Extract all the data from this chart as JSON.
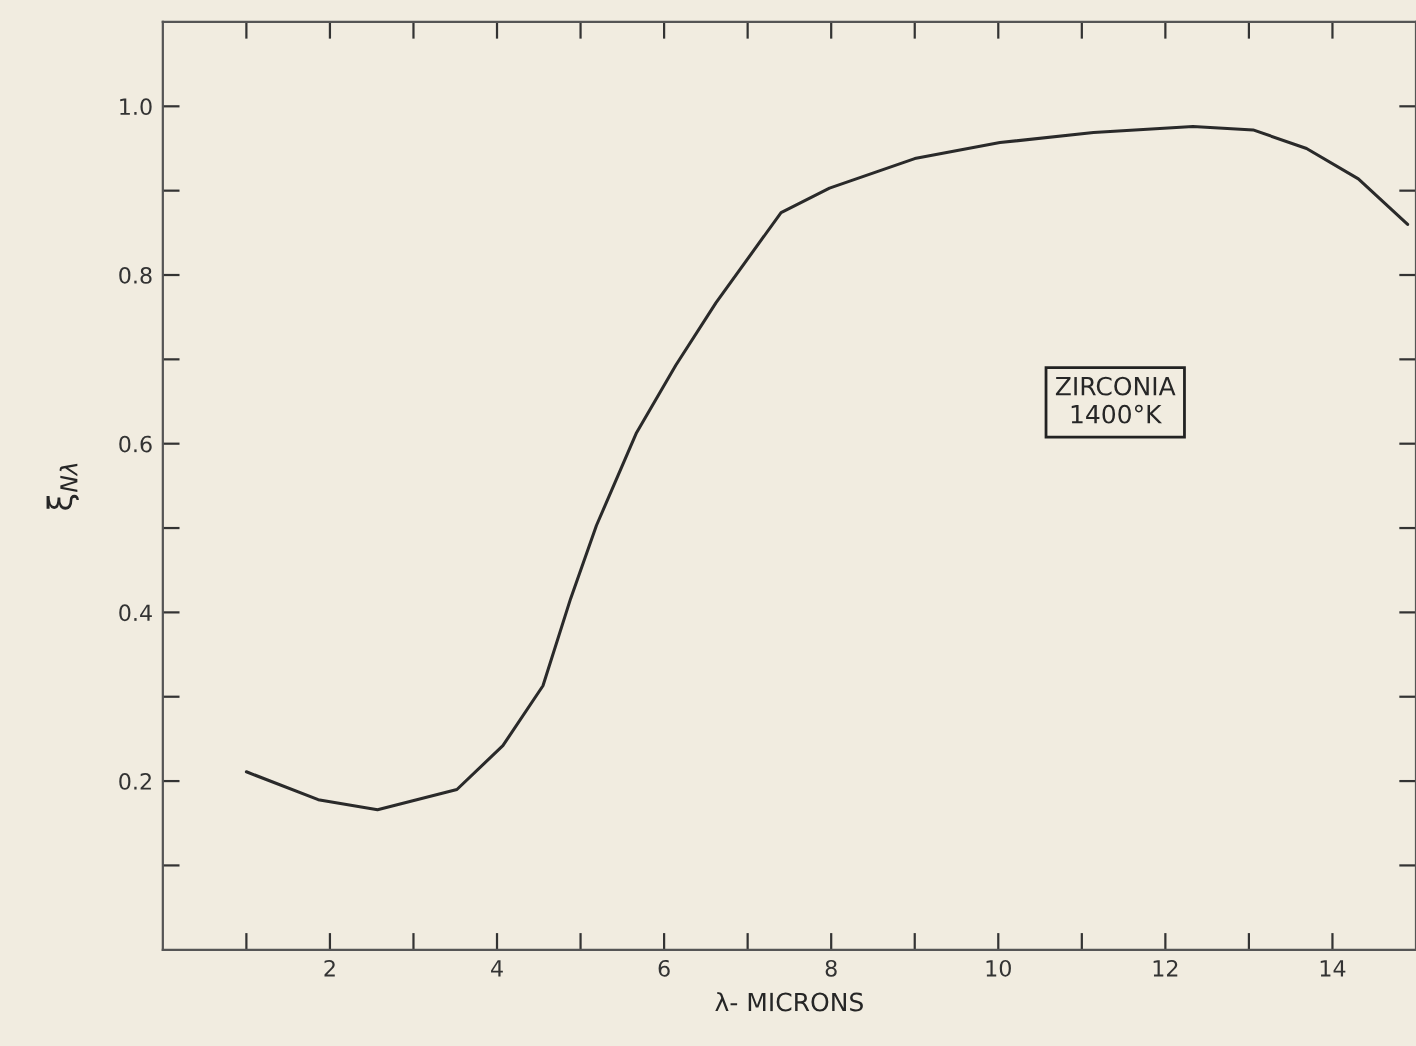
{
  "chart_data": {
    "type": "line",
    "xlabel": "λ- MICRONS",
    "ylabel": "ξ$_{Nλ}$",
    "annotations": [
      "ZIRCONIA\n1400°K"
    ],
    "xlim": [
      0,
      15
    ],
    "ylim": [
      0,
      1.1
    ],
    "xticks": [
      {
        "value": 1,
        "label": null
      },
      2,
      {
        "value": 3,
        "label": null
      },
      4,
      {
        "value": 5,
        "label": null
      },
      6,
      {
        "value": 7,
        "label": null
      },
      8,
      {
        "value": 9,
        "label": null
      },
      10,
      {
        "value": 11,
        "label": null
      },
      12,
      {
        "value": 13,
        "label": null
      },
      14
    ],
    "yticks": [
      {
        "value": 0.1,
        "label": null
      },
      0.2,
      {
        "value": 0.3,
        "label": null
      },
      0.4,
      {
        "value": 0.5,
        "label": null
      },
      0.6,
      {
        "value": 0.7,
        "label": null
      },
      0.8,
      {
        "value": 0.9,
        "label": null
      },
      {
        "value": 1.0,
        "label": "1.0"
      }
    ],
    "grid": false,
    "marker": "none",
    "line_style": "solid",
    "series": [
      {
        "color": "#2a2a2a",
        "x": [
          1.0,
          1.86,
          2.57,
          3.52,
          4.07,
          4.55,
          4.88,
          5.19,
          5.67,
          6.14,
          6.62,
          7.4,
          7.98,
          9.0,
          10.02,
          11.14,
          12.33,
          13.05,
          13.69,
          14.31,
          14.9
        ],
        "values": [
          0.211,
          0.178,
          0.166,
          0.19,
          0.242,
          0.313,
          0.416,
          0.503,
          0.613,
          0.693,
          0.767,
          0.874,
          0.903,
          0.938,
          0.957,
          0.969,
          0.976,
          0.972,
          0.95,
          0.914,
          0.86
        ]
      }
    ]
  }
}
